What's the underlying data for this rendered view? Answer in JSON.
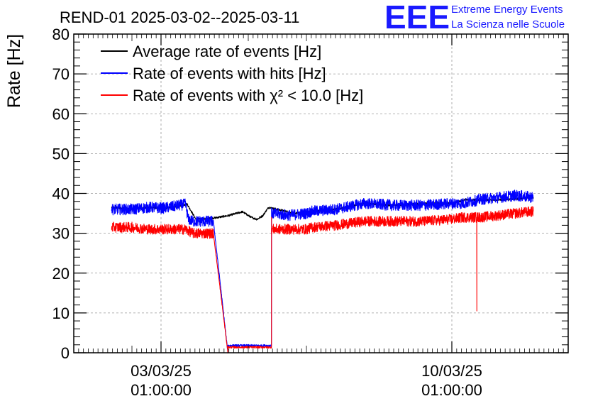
{
  "logo": {
    "mark": "EEE",
    "line1": "Extreme Energy Events",
    "line2": "La Scienza nelle Scuole",
    "color": "#1a1aff"
  },
  "chart_data": {
    "type": "line",
    "title": "REND-01 2025-03-02--2025-03-11",
    "xlabel": "",
    "ylabel": "Rate [Hz]",
    "ylim": [
      0,
      80
    ],
    "yticks": [
      0,
      10,
      20,
      30,
      40,
      50,
      60,
      70,
      80
    ],
    "xlim_days": [
      0,
      8.5
    ],
    "xticks": [
      {
        "pos": 1.5,
        "date": "03/03/25",
        "time": "01:00:00"
      },
      {
        "pos": 6.5,
        "date": "10/03/25",
        "time": "01:00:00"
      }
    ],
    "grid": true,
    "legend_position": "top-left",
    "series": [
      {
        "name": "Average rate of events [Hz]",
        "color": "#000000",
        "noise": 0.25,
        "x": [
          0.65,
          1.0,
          1.3,
          1.55,
          1.95,
          2.1,
          2.4,
          2.65,
          2.9,
          3.05,
          3.15,
          3.25,
          3.3,
          3.35,
          3.8,
          4.1,
          4.5,
          5.0,
          5.5,
          6.0,
          6.5,
          6.75,
          7.0,
          7.5,
          7.9
        ],
        "y": [
          36.5,
          36.0,
          36.5,
          36.2,
          37.3,
          33.5,
          33.8,
          34.4,
          35.4,
          34.0,
          33.5,
          34.4,
          35.5,
          36.5,
          35.0,
          35.5,
          36.0,
          37.5,
          37.0,
          37.5,
          37.5,
          38.5,
          38.3,
          38.5,
          39.0
        ]
      },
      {
        "name": "Rate of events with hits [Hz]",
        "color": "#0000ff",
        "noise": 1.4,
        "x": [
          0.65,
          1.0,
          1.3,
          1.55,
          1.92,
          1.97,
          2.05,
          2.3,
          2.4,
          2.65,
          2.65,
          3.4,
          3.4,
          3.7,
          4.0,
          4.1,
          4.5,
          5.0,
          5.5,
          6.0,
          6.5,
          6.7,
          7.0,
          7.3,
          7.6,
          7.9
        ],
        "y": [
          36.0,
          36.0,
          36.5,
          36.3,
          37.3,
          33.5,
          33.0,
          33.0,
          33.0,
          0.0,
          1.8,
          1.8,
          35.0,
          34.5,
          35.0,
          35.5,
          36.0,
          37.5,
          37.0,
          37.0,
          37.5,
          37.5,
          38.5,
          39.0,
          39.5,
          39.0
        ]
      },
      {
        "name": "Rate of events with χ² < 10.0 [Hz]",
        "color": "#ff0000",
        "noise": 1.3,
        "x": [
          0.65,
          1.0,
          1.3,
          1.55,
          1.92,
          2.05,
          2.3,
          2.4,
          2.65,
          2.65,
          3.4,
          3.4,
          3.4,
          3.7,
          4.0,
          4.1,
          4.5,
          5.0,
          5.5,
          6.0,
          6.5,
          6.7,
          6.93,
          6.93,
          6.93,
          7.0,
          7.3,
          7.6,
          7.9
        ],
        "y": [
          31.5,
          31.5,
          31.0,
          31.0,
          31.0,
          30.0,
          30.0,
          30.0,
          0.0,
          1.4,
          1.4,
          34.0,
          31.0,
          31.0,
          31.0,
          31.5,
          32.0,
          33.0,
          33.0,
          33.0,
          33.5,
          34.0,
          34.0,
          10.5,
          34.0,
          34.0,
          34.5,
          35.0,
          35.5
        ]
      }
    ]
  }
}
